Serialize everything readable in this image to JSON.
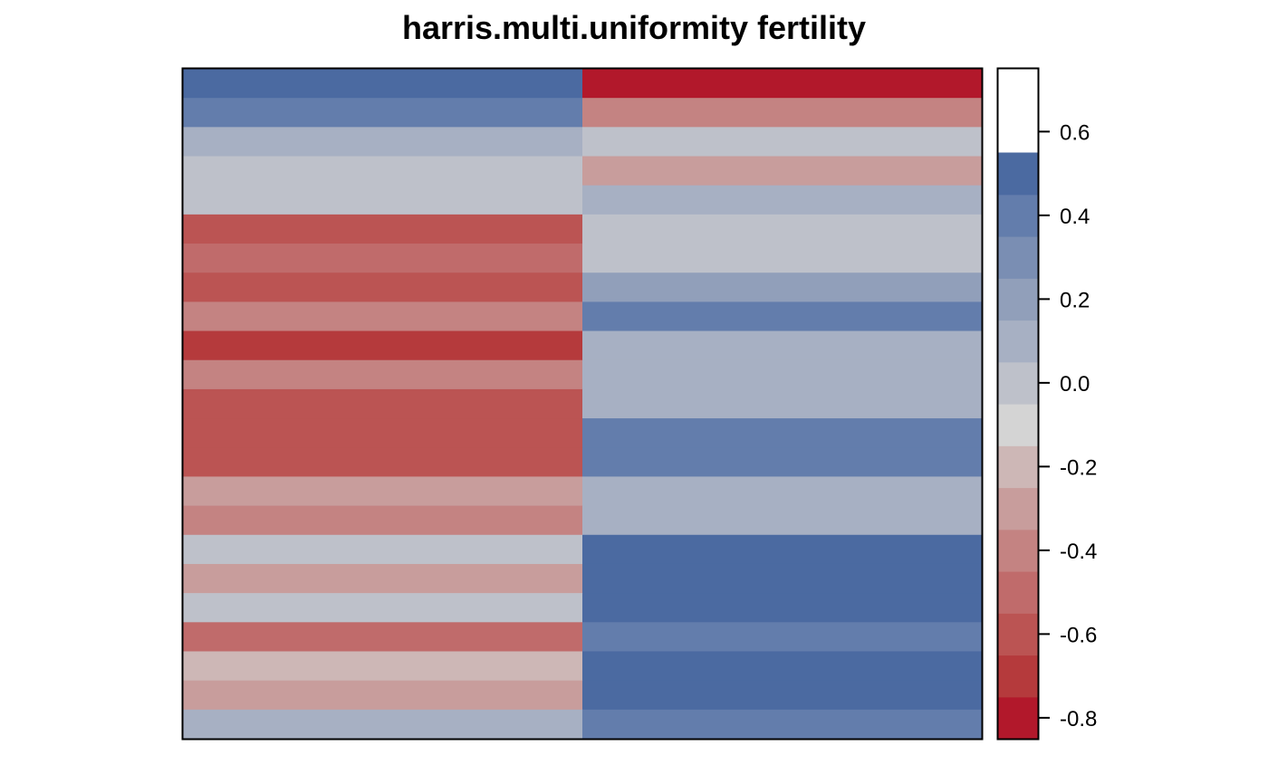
{
  "chart_data": {
    "type": "heatmap",
    "title": "harris.multi.uniformity fertility",
    "xlabel": "",
    "ylabel": "",
    "columns": 2,
    "rows": 23,
    "values": [
      [
        0.6,
        -0.8
      ],
      [
        0.4,
        -0.4
      ],
      [
        0.1,
        0.0
      ],
      [
        0.0,
        -0.3
      ],
      [
        0.0,
        0.1
      ],
      [
        -0.6,
        0.0
      ],
      [
        -0.5,
        0.0
      ],
      [
        -0.6,
        0.2
      ],
      [
        -0.4,
        0.4
      ],
      [
        -0.7,
        0.1
      ],
      [
        -0.4,
        0.1
      ],
      [
        -0.6,
        0.1
      ],
      [
        -0.6,
        0.4
      ],
      [
        -0.6,
        0.4
      ],
      [
        -0.3,
        0.1
      ],
      [
        -0.4,
        0.1
      ],
      [
        0.0,
        0.5
      ],
      [
        -0.3,
        0.5
      ],
      [
        0.0,
        0.7
      ],
      [
        -0.5,
        0.4
      ],
      [
        -0.2,
        0.6
      ],
      [
        -0.3,
        0.5
      ],
      [
        0.1,
        0.4
      ]
    ],
    "colorbar": {
      "breaks": [
        -0.85,
        -0.75,
        -0.65,
        -0.55,
        -0.45,
        -0.35,
        -0.25,
        -0.15,
        -0.05,
        0.05,
        0.15,
        0.25,
        0.35,
        0.45,
        0.55,
        0.65,
        0.75
      ],
      "colors": [
        "#B2182B",
        "#B53A3C",
        "#BB5453",
        "#C06B6B",
        "#C48382",
        "#C89D9C",
        "#CDB7B6",
        "#D4D4D4",
        "#BEC1CA",
        "#A7B0C3",
        "#919FBA",
        "#7A8EB3",
        "#637DAC",
        "#4B6AA1"
      ],
      "ticks": [
        -0.8,
        -0.6,
        -0.4,
        -0.2,
        0.0,
        0.2,
        0.4,
        0.6
      ],
      "tick_labels": [
        "-0.8",
        "-0.6",
        "-0.4",
        "-0.2",
        "0.0",
        "0.2",
        "0.4",
        "0.6"
      ]
    },
    "grid": false,
    "legend": "right"
  }
}
